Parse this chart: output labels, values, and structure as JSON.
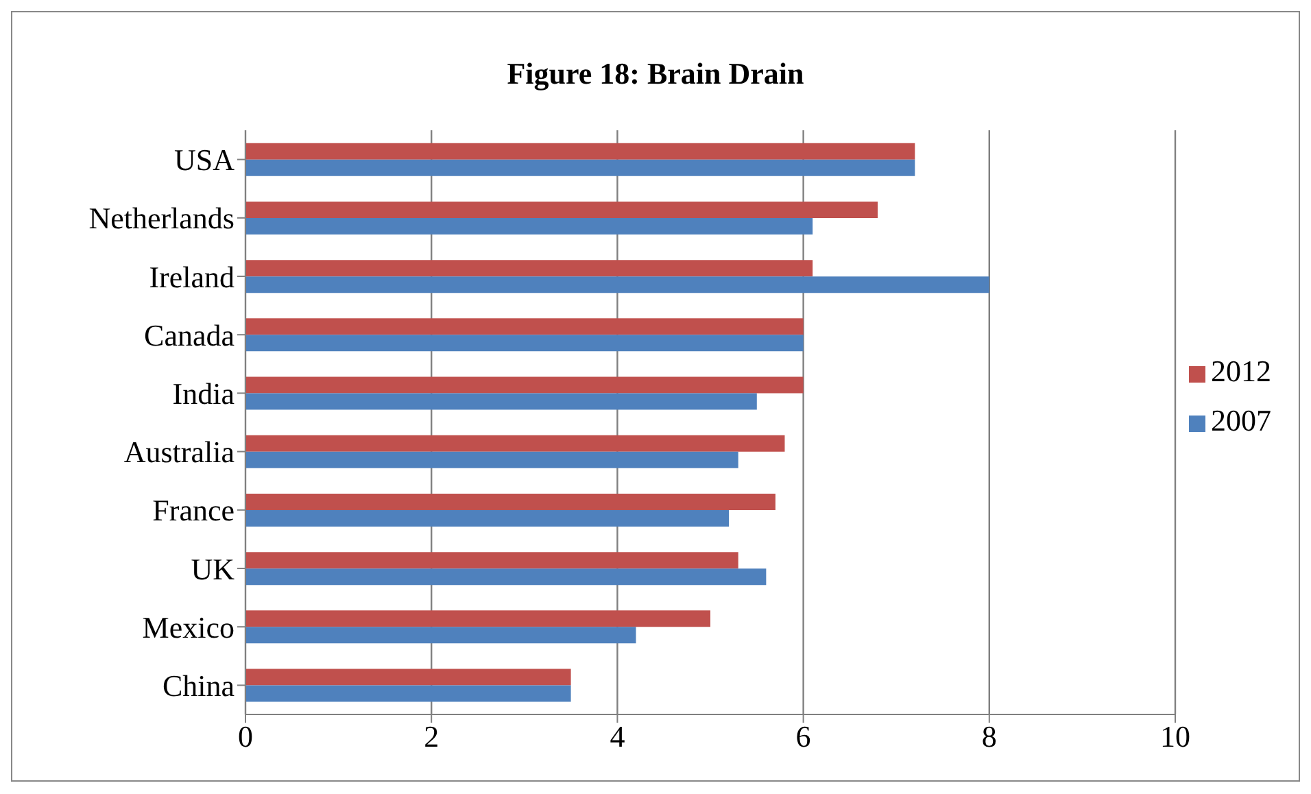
{
  "chart_data": {
    "type": "bar",
    "orientation": "horizontal",
    "title": "Figure 18: Brain Drain",
    "categories": [
      "USA",
      "Netherlands",
      "Ireland",
      "Canada",
      "India",
      "Australia",
      "France",
      "UK",
      "Mexico",
      "China"
    ],
    "series": [
      {
        "name": "2012",
        "color": "#c0504d",
        "values": [
          7.2,
          6.8,
          6.1,
          6.0,
          6.0,
          5.8,
          5.7,
          5.3,
          5.0,
          3.5
        ]
      },
      {
        "name": "2007",
        "color": "#4f81bd",
        "values": [
          7.2,
          6.1,
          8.0,
          6.0,
          5.5,
          5.3,
          5.2,
          5.6,
          4.2,
          3.5
        ]
      }
    ],
    "xlim": [
      0,
      10
    ],
    "xticks": [
      0,
      2,
      4,
      6,
      8,
      10
    ],
    "grid": "x",
    "legend": "right"
  }
}
